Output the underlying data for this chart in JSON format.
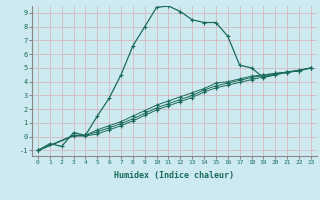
{
  "xlabel": "Humidex (Indice chaleur)",
  "ylabel": "",
  "xlim": [
    -0.5,
    23.5
  ],
  "ylim": [
    -1.4,
    9.5
  ],
  "xticks": [
    0,
    1,
    2,
    3,
    4,
    5,
    6,
    7,
    8,
    9,
    10,
    11,
    12,
    13,
    14,
    15,
    16,
    17,
    18,
    19,
    20,
    21,
    22,
    23
  ],
  "yticks": [
    -1,
    0,
    1,
    2,
    3,
    4,
    5,
    6,
    7,
    8,
    9
  ],
  "line_color": "#1a6b5a",
  "bg_color": "#cdeaf0",
  "grid_color": "#d4b8c0",
  "spine_color": "#888888",
  "line1_x": [
    0,
    1,
    2,
    3,
    4,
    5,
    6,
    7,
    8,
    9,
    10,
    11,
    12,
    13,
    14,
    15,
    16,
    17,
    18,
    19,
    20,
    21,
    22,
    23
  ],
  "line1_y": [
    -1,
    -0.5,
    -0.7,
    0.3,
    0.1,
    1.5,
    2.8,
    4.5,
    6.6,
    8.0,
    9.4,
    9.5,
    9.1,
    8.5,
    8.3,
    8.3,
    7.3,
    5.2,
    5.0,
    4.3,
    4.5,
    4.7,
    4.8,
    5.0
  ],
  "line2_x": [
    0,
    3,
    4,
    5,
    6,
    7,
    8,
    9,
    10,
    11,
    12,
    13,
    14,
    15,
    16,
    17,
    18,
    19,
    20,
    21,
    22,
    23
  ],
  "line2_y": [
    -1,
    0.1,
    0.1,
    0.5,
    0.8,
    1.1,
    1.5,
    1.9,
    2.3,
    2.6,
    2.9,
    3.2,
    3.5,
    3.9,
    4.0,
    4.2,
    4.4,
    4.5,
    4.6,
    4.7,
    4.8,
    5.0
  ],
  "line3_x": [
    0,
    3,
    4,
    5,
    6,
    7,
    8,
    9,
    10,
    11,
    12,
    13,
    14,
    15,
    16,
    17,
    18,
    19,
    20,
    21,
    22,
    23
  ],
  "line3_y": [
    -1,
    0.1,
    0.1,
    0.35,
    0.65,
    0.95,
    1.3,
    1.7,
    2.1,
    2.4,
    2.7,
    3.0,
    3.4,
    3.7,
    3.9,
    4.1,
    4.3,
    4.45,
    4.6,
    4.7,
    4.85,
    5.0
  ],
  "line4_x": [
    0,
    3,
    4,
    5,
    6,
    7,
    8,
    9,
    10,
    11,
    12,
    13,
    14,
    15,
    16,
    17,
    18,
    19,
    20,
    21,
    22,
    23
  ],
  "line4_y": [
    -1,
    0.05,
    0.05,
    0.2,
    0.5,
    0.8,
    1.15,
    1.55,
    1.95,
    2.25,
    2.55,
    2.85,
    3.25,
    3.55,
    3.75,
    3.95,
    4.15,
    4.35,
    4.55,
    4.65,
    4.8,
    5.0
  ]
}
